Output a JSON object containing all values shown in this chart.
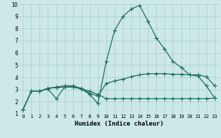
{
  "xlabel": "Humidex (Indice chaleur)",
  "bg_color": "#cce8e8",
  "grid_color": "#aacccc",
  "line_color": "#1a6b60",
  "xlim": [
    -0.5,
    23.5
  ],
  "ylim": [
    1,
    10
  ],
  "xticks": [
    0,
    1,
    2,
    3,
    4,
    5,
    6,
    7,
    8,
    9,
    10,
    11,
    12,
    13,
    14,
    15,
    16,
    17,
    18,
    19,
    20,
    21,
    22,
    23
  ],
  "yticks": [
    1,
    2,
    3,
    4,
    5,
    6,
    7,
    8,
    9,
    10
  ],
  "line1_x": [
    0,
    1,
    2,
    3,
    4,
    5,
    6,
    7,
    8,
    9,
    10,
    11,
    12,
    13,
    14,
    15,
    16,
    17,
    18,
    19,
    20,
    21,
    22,
    23
  ],
  "line1_y": [
    1.35,
    2.85,
    2.85,
    3.05,
    2.25,
    3.2,
    3.2,
    3.05,
    2.85,
    2.6,
    2.25,
    2.25,
    2.25,
    2.25,
    2.25,
    2.25,
    2.25,
    2.25,
    2.25,
    2.25,
    2.25,
    2.25,
    2.25,
    2.3
  ],
  "line2_x": [
    0,
    1,
    2,
    3,
    4,
    5,
    6,
    7,
    8,
    9,
    10,
    11,
    12,
    13,
    14,
    15,
    16,
    17,
    18,
    19,
    20,
    21,
    22,
    23
  ],
  "line2_y": [
    1.35,
    2.85,
    2.85,
    3.1,
    3.2,
    3.3,
    3.3,
    3.1,
    2.7,
    2.45,
    3.5,
    3.7,
    3.85,
    4.05,
    4.2,
    4.3,
    4.3,
    4.3,
    4.25,
    4.25,
    4.2,
    4.2,
    4.05,
    3.3
  ],
  "line3_x": [
    0,
    1,
    2,
    3,
    4,
    5,
    6,
    7,
    8,
    9,
    10,
    11,
    12,
    13,
    14,
    15,
    16,
    17,
    18,
    19,
    20,
    21,
    22,
    23
  ],
  "line3_y": [
    1.35,
    2.85,
    2.85,
    3.1,
    3.15,
    3.2,
    3.2,
    3.05,
    2.6,
    1.85,
    5.3,
    7.85,
    9.0,
    9.6,
    9.9,
    8.6,
    7.25,
    6.3,
    5.3,
    4.8,
    4.2,
    4.1,
    3.3,
    2.3
  ]
}
